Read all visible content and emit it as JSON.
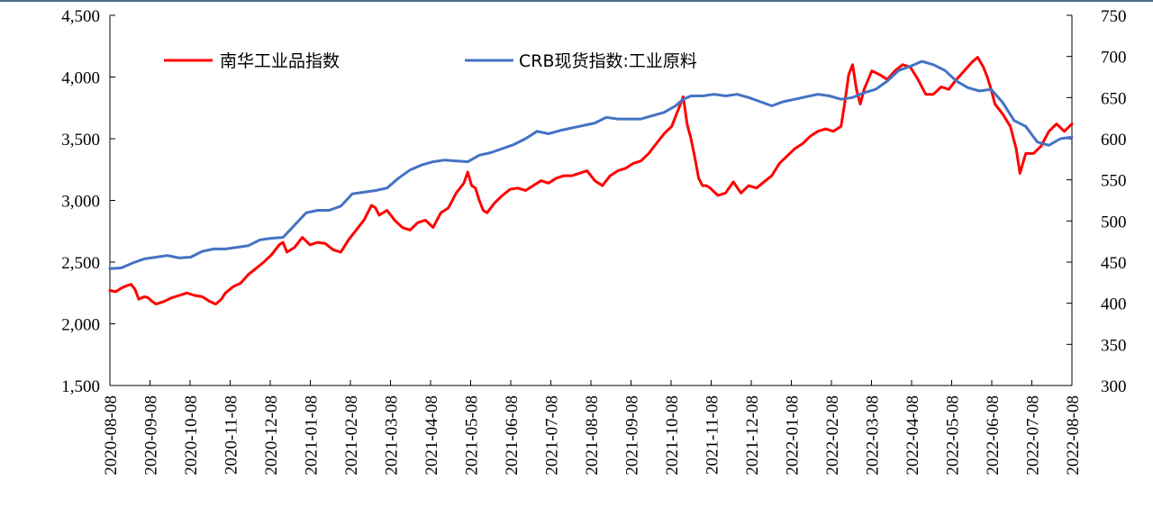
{
  "chart_data": {
    "type": "line",
    "title": "",
    "xlabel": "",
    "ylabel_left": "",
    "ylabel_right": "",
    "categories": [
      "2020-08-08",
      "2020-09-08",
      "2020-10-08",
      "2020-11-08",
      "2020-12-08",
      "2021-01-08",
      "2021-02-08",
      "2021-03-08",
      "2021-04-08",
      "2021-05-08",
      "2021-06-08",
      "2021-07-08",
      "2021-08-08",
      "2021-09-08",
      "2021-10-08",
      "2021-11-08",
      "2021-12-08",
      "2022-01-08",
      "2022-02-08",
      "2022-03-08",
      "2022-04-08",
      "2022-05-08",
      "2022-06-08",
      "2022-07-08",
      "2022-08-08"
    ],
    "y_left": {
      "range": [
        1500,
        4500
      ],
      "ticks": [
        "1,500",
        "2,000",
        "2,500",
        "3,000",
        "3,500",
        "4,000",
        "4,500"
      ]
    },
    "y_right": {
      "range": [
        300,
        750
      ],
      "ticks": [
        "300",
        "350",
        "400",
        "450",
        "500",
        "550",
        "600",
        "650",
        "700",
        "750"
      ]
    },
    "legend_position": "top-left",
    "series": [
      {
        "name": "南华工业品指数",
        "axis": "left",
        "color": "#ff0000",
        "points": [
          [
            0,
            2270
          ],
          [
            0.15,
            2260
          ],
          [
            0.3,
            2290
          ],
          [
            0.45,
            2310
          ],
          [
            0.55,
            2320
          ],
          [
            0.65,
            2280
          ],
          [
            0.75,
            2200
          ],
          [
            0.9,
            2220
          ],
          [
            1.0,
            2210
          ],
          [
            1.1,
            2180
          ],
          [
            1.2,
            2160
          ],
          [
            1.4,
            2180
          ],
          [
            1.6,
            2210
          ],
          [
            1.8,
            2230
          ],
          [
            2.0,
            2250
          ],
          [
            2.2,
            2230
          ],
          [
            2.4,
            2220
          ],
          [
            2.6,
            2180
          ],
          [
            2.75,
            2160
          ],
          [
            2.9,
            2200
          ],
          [
            3.0,
            2250
          ],
          [
            3.2,
            2300
          ],
          [
            3.4,
            2330
          ],
          [
            3.6,
            2400
          ],
          [
            3.8,
            2450
          ],
          [
            4.0,
            2500
          ],
          [
            4.2,
            2560
          ],
          [
            4.4,
            2640
          ],
          [
            4.5,
            2660
          ],
          [
            4.6,
            2580
          ],
          [
            4.8,
            2620
          ],
          [
            5.0,
            2700
          ],
          [
            5.2,
            2640
          ],
          [
            5.4,
            2660
          ],
          [
            5.6,
            2650
          ],
          [
            5.8,
            2600
          ],
          [
            6.0,
            2580
          ],
          [
            6.2,
            2680
          ],
          [
            6.4,
            2760
          ],
          [
            6.6,
            2840
          ],
          [
            6.8,
            2960
          ],
          [
            6.9,
            2940
          ],
          [
            7.0,
            2880
          ],
          [
            7.2,
            2920
          ],
          [
            7.4,
            2840
          ],
          [
            7.6,
            2780
          ],
          [
            7.8,
            2760
          ],
          [
            8.0,
            2820
          ],
          [
            8.2,
            2840
          ],
          [
            8.4,
            2780
          ],
          [
            8.6,
            2900
          ],
          [
            8.8,
            2940
          ],
          [
            9.0,
            3060
          ],
          [
            9.2,
            3140
          ],
          [
            9.3,
            3230
          ],
          [
            9.4,
            3120
          ],
          [
            9.5,
            3100
          ],
          [
            9.6,
            3000
          ],
          [
            9.7,
            2920
          ],
          [
            9.8,
            2900
          ],
          [
            10.0,
            2980
          ],
          [
            10.2,
            3040
          ],
          [
            10.4,
            3090
          ],
          [
            10.6,
            3100
          ],
          [
            10.8,
            3080
          ],
          [
            11.0,
            3120
          ],
          [
            11.2,
            3160
          ],
          [
            11.4,
            3140
          ],
          [
            11.6,
            3180
          ],
          [
            11.8,
            3200
          ],
          [
            12.0,
            3200
          ],
          [
            12.2,
            3220
          ],
          [
            12.4,
            3240
          ],
          [
            12.6,
            3160
          ],
          [
            12.8,
            3120
          ],
          [
            13.0,
            3200
          ],
          [
            13.2,
            3240
          ],
          [
            13.4,
            3260
          ],
          [
            13.6,
            3300
          ],
          [
            13.8,
            3320
          ],
          [
            14.0,
            3380
          ],
          [
            14.2,
            3460
          ],
          [
            14.4,
            3540
          ],
          [
            14.6,
            3600
          ],
          [
            14.7,
            3680
          ],
          [
            14.8,
            3760
          ],
          [
            14.9,
            3840
          ],
          [
            15.0,
            3620
          ],
          [
            15.1,
            3500
          ],
          [
            15.2,
            3350
          ],
          [
            15.3,
            3180
          ],
          [
            15.4,
            3120
          ],
          [
            15.5,
            3120
          ],
          [
            15.6,
            3100
          ],
          [
            15.8,
            3040
          ],
          [
            16.0,
            3060
          ],
          [
            16.2,
            3150
          ],
          [
            16.4,
            3060
          ],
          [
            16.6,
            3120
          ],
          [
            16.8,
            3100
          ],
          [
            17.0,
            3150
          ],
          [
            17.2,
            3200
          ],
          [
            17.4,
            3300
          ],
          [
            17.6,
            3360
          ],
          [
            17.8,
            3420
          ],
          [
            18.0,
            3460
          ],
          [
            18.2,
            3520
          ],
          [
            18.4,
            3560
          ],
          [
            18.6,
            3580
          ],
          [
            18.8,
            3560
          ],
          [
            19.0,
            3600
          ],
          [
            19.1,
            3800
          ],
          [
            19.2,
            4020
          ],
          [
            19.3,
            4100
          ],
          [
            19.4,
            3900
          ],
          [
            19.5,
            3780
          ],
          [
            19.6,
            3900
          ],
          [
            19.8,
            4050
          ],
          [
            20.0,
            4020
          ],
          [
            20.2,
            3980
          ],
          [
            20.4,
            4050
          ],
          [
            20.6,
            4100
          ],
          [
            20.8,
            4080
          ],
          [
            21.0,
            3980
          ],
          [
            21.2,
            3860
          ],
          [
            21.4,
            3860
          ],
          [
            21.6,
            3920
          ],
          [
            21.8,
            3900
          ],
          [
            22.0,
            3980
          ],
          [
            22.2,
            4050
          ],
          [
            22.4,
            4120
          ],
          [
            22.55,
            4160
          ],
          [
            22.7,
            4080
          ],
          [
            22.8,
            4000
          ],
          [
            22.9,
            3900
          ],
          [
            23.0,
            3780
          ],
          [
            23.2,
            3700
          ],
          [
            23.4,
            3600
          ],
          [
            23.55,
            3420
          ],
          [
            23.65,
            3220
          ],
          [
            23.8,
            3380
          ],
          [
            24.0,
            3380
          ],
          [
            24.2,
            3440
          ],
          [
            24.4,
            3560
          ],
          [
            24.6,
            3620
          ],
          [
            24.8,
            3560
          ],
          [
            25.0,
            3620
          ]
        ]
      },
      {
        "name": "CRB现货指数:工业原料",
        "axis": "right",
        "color": "#4472c4",
        "points": [
          [
            0,
            442
          ],
          [
            0.3,
            443
          ],
          [
            0.6,
            449
          ],
          [
            0.9,
            454
          ],
          [
            1.2,
            456
          ],
          [
            1.5,
            458
          ],
          [
            1.8,
            455
          ],
          [
            2.1,
            456
          ],
          [
            2.4,
            463
          ],
          [
            2.7,
            466
          ],
          [
            3.0,
            466
          ],
          [
            3.3,
            468
          ],
          [
            3.6,
            470
          ],
          [
            3.9,
            477
          ],
          [
            4.2,
            479
          ],
          [
            4.5,
            480
          ],
          [
            4.8,
            495
          ],
          [
            5.1,
            510
          ],
          [
            5.4,
            513
          ],
          [
            5.7,
            513
          ],
          [
            6.0,
            518
          ],
          [
            6.3,
            533
          ],
          [
            6.6,
            535
          ],
          [
            6.9,
            537
          ],
          [
            7.2,
            540
          ],
          [
            7.5,
            552
          ],
          [
            7.8,
            562
          ],
          [
            8.1,
            568
          ],
          [
            8.4,
            572
          ],
          [
            8.7,
            574
          ],
          [
            9.0,
            573
          ],
          [
            9.3,
            572
          ],
          [
            9.6,
            580
          ],
          [
            9.9,
            583
          ],
          [
            10.2,
            588
          ],
          [
            10.5,
            593
          ],
          [
            10.8,
            600
          ],
          [
            11.1,
            609
          ],
          [
            11.4,
            606
          ],
          [
            11.7,
            610
          ],
          [
            12.0,
            613
          ],
          [
            12.3,
            616
          ],
          [
            12.6,
            619
          ],
          [
            12.9,
            626
          ],
          [
            13.2,
            624
          ],
          [
            13.5,
            624
          ],
          [
            13.8,
            624
          ],
          [
            14.1,
            628
          ],
          [
            14.4,
            632
          ],
          [
            14.7,
            640
          ],
          [
            14.9,
            648
          ],
          [
            15.1,
            652
          ],
          [
            15.4,
            652
          ],
          [
            15.7,
            654
          ],
          [
            16.0,
            652
          ],
          [
            16.3,
            654
          ],
          [
            16.6,
            650
          ],
          [
            16.9,
            645
          ],
          [
            17.2,
            640
          ],
          [
            17.5,
            645
          ],
          [
            17.8,
            648
          ],
          [
            18.1,
            651
          ],
          [
            18.4,
            654
          ],
          [
            18.7,
            652
          ],
          [
            19.0,
            648
          ],
          [
            19.3,
            650
          ],
          [
            19.6,
            656
          ],
          [
            19.9,
            660
          ],
          [
            20.2,
            670
          ],
          [
            20.5,
            683
          ],
          [
            20.8,
            688
          ],
          [
            21.1,
            694
          ],
          [
            21.4,
            690
          ],
          [
            21.7,
            683
          ],
          [
            22.0,
            670
          ],
          [
            22.3,
            662
          ],
          [
            22.6,
            658
          ],
          [
            22.9,
            660
          ],
          [
            23.2,
            644
          ],
          [
            23.5,
            622
          ],
          [
            23.8,
            615
          ],
          [
            24.1,
            596
          ],
          [
            24.4,
            592
          ],
          [
            24.7,
            600
          ],
          [
            25.0,
            602
          ]
        ]
      }
    ]
  }
}
